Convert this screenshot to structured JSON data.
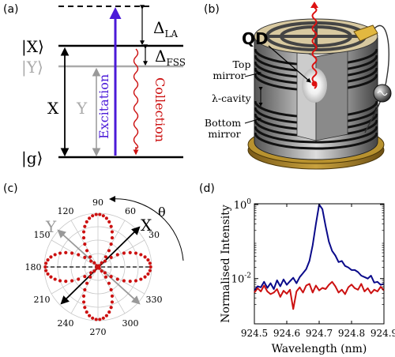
{
  "panels": {
    "a": {
      "label": "(a)",
      "levels": {
        "x": "|X⟩",
        "y": "|Y⟩",
        "g": "|g⟩"
      },
      "delta_la": "Δ",
      "delta_la_sub": "LA",
      "delta_fss": "Δ",
      "delta_fss_sub": "FSS",
      "x_label": "X",
      "y_label": "Y",
      "excitation": "Excitation",
      "collection": "Collection",
      "colors": {
        "excitation": "#4b1ad8",
        "collection": "#cc1111",
        "y_level": "#aaaaaa"
      }
    },
    "b": {
      "label": "(b)",
      "qd": "QD",
      "top_mirror": [
        "Top",
        "mirror"
      ],
      "cavity": "λ-cavity",
      "bottom_mirror": [
        "Bottom",
        "mirror"
      ],
      "icon": "micropillar-cavity-illustration"
    },
    "c": {
      "label": "(c)",
      "angle_symbol": "θ",
      "angles": [
        "90",
        "60",
        "30",
        "330",
        "300",
        "270",
        "240",
        "210",
        "180",
        "150",
        "120"
      ],
      "x_label": "X",
      "y_label": "Y",
      "colors": {
        "dots": "#cc1111"
      }
    },
    "d": {
      "label": "(d)"
    }
  },
  "chart_data": {
    "type": "line",
    "xlabel": "Wavelength (nm)",
    "ylabel": "Normalised Intensity",
    "xlim": [
      924.5,
      924.9
    ],
    "ylim": [
      0.0006,
      1.05
    ],
    "yscale": "log",
    "xticks": [
      "924.5",
      "924.6",
      "924.7",
      "924.8",
      "924.9"
    ],
    "yticks": [
      {
        "base": "10",
        "exp": "0",
        "value": 1
      },
      {
        "base": "10",
        "exp": "-2",
        "value": 0.01
      }
    ],
    "series": [
      {
        "color": "#0a0a8a",
        "x": [
          924.5,
          924.51,
          924.52,
          924.53,
          924.54,
          924.55,
          924.56,
          924.57,
          924.58,
          924.59,
          924.6,
          924.61,
          924.62,
          924.63,
          924.64,
          924.65,
          924.66,
          924.67,
          924.68,
          924.69,
          924.7,
          924.71,
          924.72,
          924.73,
          924.74,
          924.75,
          924.76,
          924.77,
          924.78,
          924.79,
          924.8,
          924.81,
          924.82,
          924.83,
          924.84,
          924.85,
          924.86,
          924.87,
          924.88,
          924.89,
          924.9
        ],
        "y": [
          0.0048,
          0.0062,
          0.0058,
          0.0082,
          0.0056,
          0.0075,
          0.0052,
          0.009,
          0.0062,
          0.0095,
          0.0068,
          0.0085,
          0.0105,
          0.0075,
          0.011,
          0.014,
          0.018,
          0.03,
          0.08,
          0.3,
          1.0,
          0.75,
          0.26,
          0.1,
          0.056,
          0.042,
          0.028,
          0.03,
          0.022,
          0.02,
          0.017,
          0.017,
          0.015,
          0.012,
          0.011,
          0.01,
          0.012,
          0.0078,
          0.0082,
          0.0068,
          0.0072
        ]
      },
      {
        "color": "#cc1111",
        "x": [
          924.5,
          924.51,
          924.52,
          924.53,
          924.54,
          924.55,
          924.56,
          924.57,
          924.58,
          924.59,
          924.6,
          924.61,
          924.62,
          924.63,
          924.64,
          924.65,
          924.66,
          924.67,
          924.68,
          924.69,
          924.7,
          924.71,
          924.72,
          924.73,
          924.74,
          924.75,
          924.76,
          924.77,
          924.78,
          924.79,
          924.8,
          924.81,
          924.82,
          924.83,
          924.84,
          924.85,
          924.86,
          924.87,
          924.88,
          924.89,
          924.9
        ],
        "y": [
          0.0042,
          0.0055,
          0.0045,
          0.0065,
          0.0045,
          0.0038,
          0.0042,
          0.0052,
          0.0032,
          0.0047,
          0.0039,
          0.005,
          0.0015,
          0.0045,
          0.0058,
          0.0042,
          0.0065,
          0.0072,
          0.0042,
          0.0065,
          0.0048,
          0.0056,
          0.0052,
          0.0068,
          0.0082,
          0.0062,
          0.0042,
          0.005,
          0.0038,
          0.0058,
          0.0069,
          0.0055,
          0.005,
          0.0072,
          0.0045,
          0.0055,
          0.004,
          0.005,
          0.0045,
          0.006,
          0.0048
        ]
      }
    ]
  }
}
